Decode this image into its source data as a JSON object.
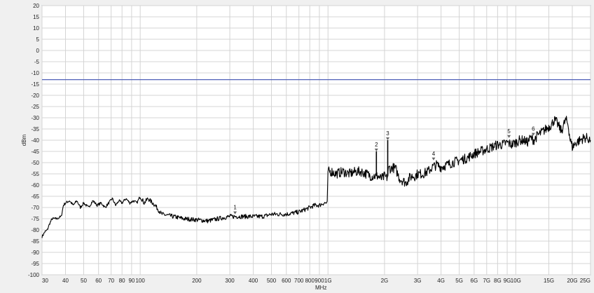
{
  "chart_data": {
    "type": "line",
    "title": "",
    "xlabel": "MHz",
    "ylabel": "dBm",
    "x_scale": "log",
    "xlim": [
      30,
      25000
    ],
    "ylim": [
      -100,
      20
    ],
    "grid": true,
    "y_ticks": [
      20,
      15,
      10,
      5,
      0,
      -5,
      -10,
      -15,
      -20,
      -25,
      -30,
      -35,
      -40,
      -45,
      -50,
      -55,
      -60,
      -65,
      -70,
      -75,
      -80,
      -85,
      -90,
      -95,
      -100
    ],
    "x_ticks": [
      {
        "value": 30,
        "label": "30"
      },
      {
        "value": 40,
        "label": "40"
      },
      {
        "value": 50,
        "label": "50"
      },
      {
        "value": 60,
        "label": "60"
      },
      {
        "value": 70,
        "label": "70"
      },
      {
        "value": 80,
        "label": "80"
      },
      {
        "value": 90,
        "label": "90"
      },
      {
        "value": 100,
        "label": "100"
      },
      {
        "value": 200,
        "label": "200"
      },
      {
        "value": 300,
        "label": "300"
      },
      {
        "value": 400,
        "label": "400"
      },
      {
        "value": 500,
        "label": "500"
      },
      {
        "value": 600,
        "label": "600"
      },
      {
        "value": 700,
        "label": "700"
      },
      {
        "value": 800,
        "label": "800"
      },
      {
        "value": 900,
        "label": "900"
      },
      {
        "value": 1000,
        "label": "1G"
      },
      {
        "value": 2000,
        "label": "2G"
      },
      {
        "value": 3000,
        "label": "3G"
      },
      {
        "value": 4000,
        "label": "4G"
      },
      {
        "value": 5000,
        "label": "5G"
      },
      {
        "value": 6000,
        "label": "6G"
      },
      {
        "value": 7000,
        "label": "7G"
      },
      {
        "value": 8000,
        "label": "8G"
      },
      {
        "value": 9000,
        "label": "9G"
      },
      {
        "value": 10000,
        "label": "10G"
      },
      {
        "value": 15000,
        "label": "15G"
      },
      {
        "value": 20000,
        "label": "20G"
      },
      {
        "value": 25000,
        "label": "25G"
      }
    ],
    "limit_line": {
      "value": -13,
      "color": "#5060b8"
    },
    "trace_color": "#000000",
    "series": [
      {
        "x": [
          30,
          31,
          32,
          33,
          34,
          36,
          38,
          39,
          40,
          42,
          44,
          46,
          48,
          50,
          53,
          56,
          59,
          62,
          65,
          68,
          71,
          74,
          77,
          80,
          84,
          88,
          92,
          96,
          100,
          105,
          110,
          120,
          130,
          150,
          170,
          200,
          230,
          260,
          300,
          350,
          400,
          450,
          500,
          550,
          600,
          650,
          700,
          750,
          800,
          850,
          900,
          950,
          990,
          1000,
          1050,
          1100,
          1200,
          1300,
          1400,
          1500,
          1600,
          1700,
          1800,
          1850,
          1900,
          1950,
          2000,
          2050,
          2080,
          2100,
          2130,
          2160,
          2200,
          2300,
          2400,
          2500,
          2600,
          2700,
          2800,
          2900,
          3000,
          3200,
          3400,
          3600,
          3800,
          4000,
          4300,
          4600,
          5000,
          5500,
          6000,
          6500,
          7000,
          7500,
          8000,
          8500,
          9000,
          9500,
          10000,
          10500,
          11000,
          11500,
          12000,
          12500,
          13000,
          14000,
          15000,
          15500,
          16000,
          16500,
          17000,
          17500,
          18000,
          18500,
          19000,
          19500,
          20000,
          21000,
          22000,
          23000,
          24000,
          25000
        ],
        "y": [
          -83,
          -81,
          -80,
          -77,
          -75,
          -75,
          -74,
          -69,
          -68,
          -67,
          -69,
          -67,
          -70,
          -68,
          -70,
          -67,
          -69,
          -68,
          -70,
          -68,
          -66,
          -69,
          -67,
          -68,
          -66,
          -68,
          -67,
          -68,
          -65,
          -68,
          -66,
          -69,
          -73,
          -74,
          -75,
          -75.5,
          -76,
          -75,
          -74,
          -74,
          -74,
          -74,
          -73,
          -73,
          -73,
          -72.5,
          -72,
          -71,
          -70,
          -69,
          -69,
          -68,
          -68,
          -54,
          -54,
          -55,
          -54,
          -55,
          -54,
          -54,
          -55,
          -56,
          -56,
          -56,
          -57,
          -57,
          -56,
          -57,
          -56,
          -53,
          -52,
          -53,
          -52,
          -53,
          -57,
          -58,
          -59,
          -57,
          -56,
          -56,
          -55,
          -55,
          -54,
          -52,
          -51,
          -52,
          -51,
          -50,
          -49,
          -48,
          -46,
          -45,
          -44,
          -43,
          -42,
          -42,
          -41,
          -42,
          -41,
          -40,
          -40,
          -41,
          -39,
          -40,
          -38,
          -36,
          -34,
          -33,
          -31,
          -32,
          -34,
          -36,
          -33,
          -31,
          -33,
          -40,
          -43,
          -41,
          -40,
          -39,
          -39,
          -40
        ]
      }
    ],
    "spikes": [
      {
        "x": 1810,
        "y": -45,
        "base": -56
      },
      {
        "x": 2080,
        "y": -40,
        "base": -56
      }
    ],
    "markers": [
      {
        "label": "1",
        "x": 320,
        "y": -73
      },
      {
        "label": "2",
        "x": 1810,
        "y": -45
      },
      {
        "label": "3",
        "x": 2080,
        "y": -40
      },
      {
        "label": "4",
        "x": 3650,
        "y": -49
      },
      {
        "label": "5",
        "x": 9200,
        "y": -39
      },
      {
        "label": "6",
        "x": 12400,
        "y": -38
      }
    ]
  }
}
